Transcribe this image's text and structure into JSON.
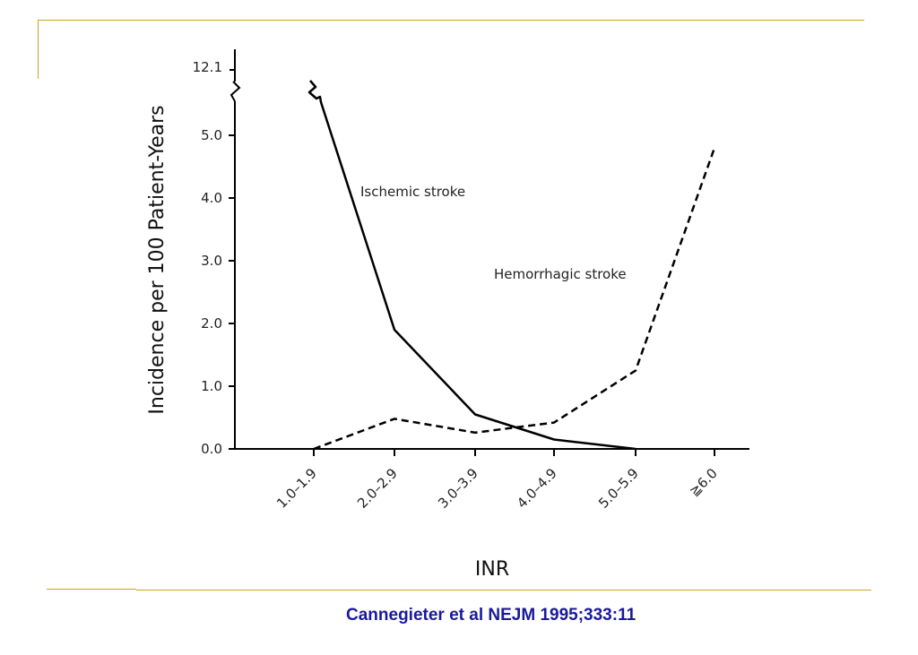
{
  "slide": {
    "citation": "Cannegieter et al NEJM 1995;333:11",
    "citation_color": "#1a1a9c",
    "accent_color": "#c9a227"
  },
  "chart_data": {
    "type": "line",
    "categories": [
      "1.0–1.9",
      "2.0–2.9",
      "3.0–3.9",
      "4.0–4.9",
      "5.0–5.9",
      "≧6.0"
    ],
    "xlabel": "INR",
    "ylabel": "Incidence per 100 Patient-Years",
    "yticks": [
      "0.0",
      "1.0",
      "2.0",
      "3.0",
      "4.0",
      "5.0"
    ],
    "ybreak_label": "12.1",
    "ylim": [
      0,
      5.6
    ],
    "axis_break": true,
    "grid": false,
    "series": [
      {
        "name": "Ischemic stroke",
        "values": [
          12.1,
          1.9,
          0.55,
          0.15,
          0.0,
          null
        ],
        "style": "solid",
        "color": "#000000"
      },
      {
        "name": "Hemorrhagic stroke",
        "values": [
          0.0,
          0.48,
          0.26,
          0.42,
          1.25,
          4.8
        ],
        "style": "dashed",
        "color": "#000000"
      }
    ]
  }
}
